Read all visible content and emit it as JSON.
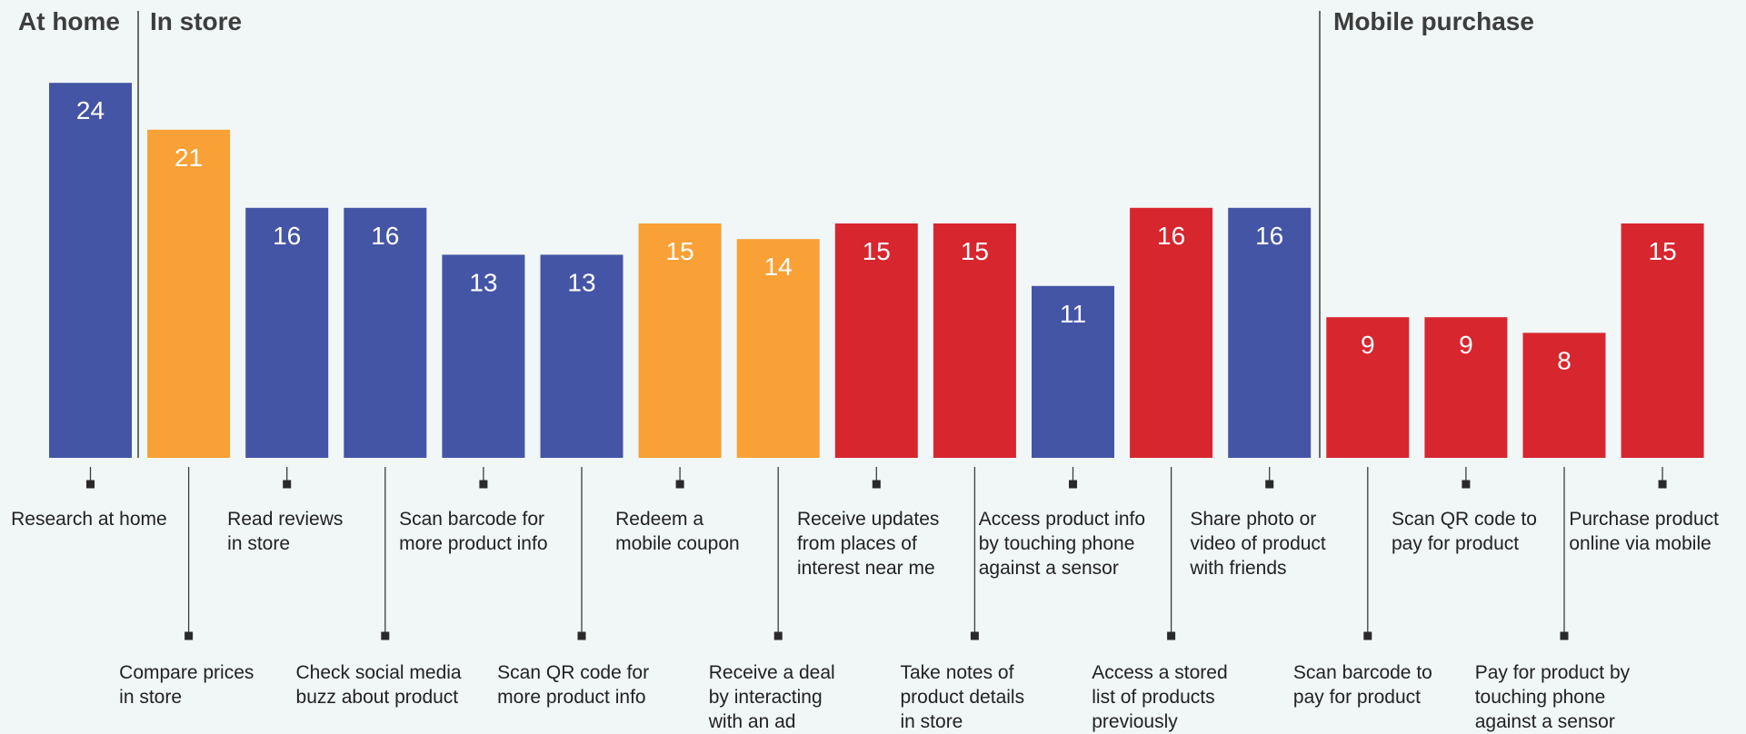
{
  "chart_data": {
    "type": "bar",
    "sections": [
      "At home",
      "In store",
      "Mobile purchase"
    ],
    "categories": [
      "Research at home",
      "Compare prices in store",
      "Read reviews in store",
      "Check social media buzz about product",
      "Scan barcode for more product info",
      "Scan QR code for more product info",
      "Redeem a mobile coupon",
      "Receive a deal by interacting with an ad",
      "Receive updates from places of interest near me",
      "Take notes of product details in store",
      "Access product info by touching phone against a sensor",
      "Access a stored list of products previously",
      "Share photo or video of product with friends",
      "Scan barcode to pay for product",
      "Scan QR code to pay for product",
      "Pay for product by touching phone against a sensor",
      "Purchase product online via mobile"
    ],
    "label_lines": [
      [
        "Research at home"
      ],
      [
        "Compare prices",
        "in store"
      ],
      [
        "Read reviews",
        "in store"
      ],
      [
        "Check social media",
        "buzz about product"
      ],
      [
        "Scan barcode for",
        "more product info"
      ],
      [
        "Scan QR code for",
        "more product info"
      ],
      [
        "Redeem a",
        "mobile coupon"
      ],
      [
        "Receive a deal",
        "by interacting",
        "with an ad"
      ],
      [
        "Receive updates",
        "from places of",
        "interest near me"
      ],
      [
        "Take notes of",
        "product details",
        "in store"
      ],
      [
        "Access product info",
        "by touching phone",
        "against a sensor"
      ],
      [
        "Access a stored",
        "list of products",
        "previously"
      ],
      [
        "Share photo or",
        "video of product",
        "with friends"
      ],
      [
        "Scan barcode to",
        "pay for product"
      ],
      [
        "Scan QR code to",
        "pay for product"
      ],
      [
        "Pay for product by",
        "touching phone",
        "against a sensor"
      ],
      [
        "Purchase product",
        "online via mobile"
      ]
    ],
    "values": [
      24,
      21,
      16,
      16,
      13,
      13,
      15,
      14,
      15,
      15,
      11,
      16,
      16,
      9,
      9,
      8,
      15
    ],
    "value_labels": [
      "24",
      "21",
      "16",
      "16",
      "13",
      "13",
      "15",
      "14",
      "15",
      "15",
      "11",
      "16",
      "16",
      "9",
      "9",
      "8",
      "15"
    ],
    "bar_colors": [
      "#4455a6",
      "#f9a036",
      "#4455a6",
      "#4455a6",
      "#4455a6",
      "#4455a6",
      "#f9a036",
      "#f9a036",
      "#d7262e",
      "#d7262e",
      "#4455a6",
      "#d7262e",
      "#4455a6",
      "#d7262e",
      "#d7262e",
      "#d7262e",
      "#d7262e"
    ],
    "label_position": [
      "upper",
      "lower",
      "upper",
      "lower",
      "upper",
      "lower",
      "upper",
      "lower",
      "upper",
      "lower",
      "upper",
      "lower",
      "upper",
      "lower",
      "upper",
      "lower",
      "upper"
    ],
    "title": "",
    "xlabel": "",
    "ylabel": "",
    "ylim": [
      0,
      24
    ],
    "grid": false,
    "legend": "none"
  }
}
